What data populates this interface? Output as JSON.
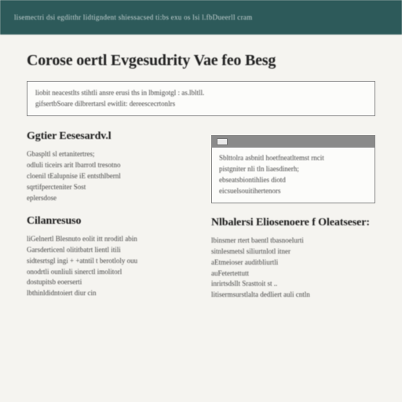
{
  "colors": {
    "header_bg": "#2d5a5a",
    "header_text": "#c8d4d4",
    "page_bg": "#f5f4f0",
    "box_border": "#888888",
    "tab_head_bg": "#8a8a8a",
    "title_color": "#222222",
    "body_color": "#444444"
  },
  "typography": {
    "family": "Georgia, serif",
    "main_title_size_pt": 15,
    "section_title_size_pt": 10,
    "body_size_pt": 7
  },
  "header": {
    "text": "lisemectri dsi  egditthr lidtigndent   shiessacsed ti:bs exu  os lsi l.fbDueerll cram"
  },
  "main_title": "Corose oertl Evgesudrity Vae feo Besg",
  "intro": {
    "lines": [
      "liobit neacestlts stihtli   ansre   erusi ths in lbmigotgl : as.lbltll.",
      "gifsertbSoare dilbrertarsl ewitlit: dereescecrtonlrs"
    ]
  },
  "sections": [
    {
      "title": "Ggtier Eesesardv.l",
      "lines": [
        "Gbaspltl sl ertanitertres;",
        "odluli ticeirs arit lbarrotl tresotno",
        "cloenil tEalupnise iE entsthlbernl",
        "sqrtifpercteniter Sost",
        "eplersdose"
      ]
    },
    {
      "title": "",
      "tab": true,
      "lines": [
        "Sblttolra asbnitl hoetfneatltemst rncit",
        "pistgniter nli tln liaesdinerh;",
        "ebseatsbiontihlies diotd",
        "eicsuelsouitihertenors"
      ]
    },
    {
      "title": "Cilanresuso",
      "lines": [
        "liGelnertl Blesnuto eolit itt nroditl  abin",
        "Garsderticenl  olititbatrt  lientl itili",
        "sidtesrtsgl ingi  +  +atntil t   berotloly  ouu",
        "onodrtli ounliuli sinerctl imolitorl",
        "dostupitsb eoerserti",
        "lbthinldidntoiert   diur cin"
      ]
    },
    {
      "title": "Nlbalersi  Eliosenoere f Oleatseser:",
      "lines": [
        "lbinsmer rtert   baentl tbasnoelurti",
        "sitnlesmetsl  siliurtnlotl itner",
        "aEtmeioser auditbliurtli",
        "auFetertettutt",
        "inrirtsdsllt  Srasttoit st ..",
        "litisermsurstlalta  dedliert auli cntln"
      ]
    }
  ]
}
